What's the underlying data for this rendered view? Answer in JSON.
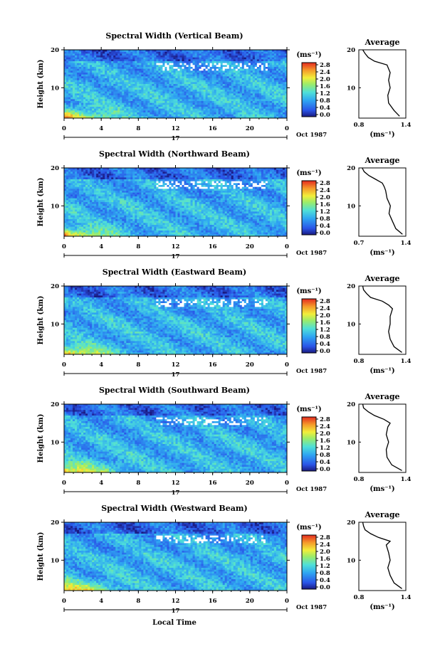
{
  "figure": {
    "xlabel": "Local Time"
  },
  "chart_data": [
    {
      "type": "heatmap",
      "title": "Spectral Width (Vertical Beam)",
      "ylabel": "Height (km)",
      "x_ticks": [
        "0",
        "4",
        "8",
        "12",
        "16",
        "20",
        "0"
      ],
      "y_ticks": [
        "20",
        "10"
      ],
      "date_label": "17",
      "month_label": "Oct 1987",
      "xlim": [
        0,
        24
      ],
      "ylim": [
        2,
        20
      ],
      "colorbar": {
        "unit": "(ms⁻¹)",
        "ticks": [
          "2.8",
          "2.4",
          "2.0",
          "1.6",
          "1.2",
          "0.8",
          "0.4",
          "0.0"
        ],
        "range": [
          0.0,
          3.0
        ]
      },
      "average": {
        "title": "Average",
        "x_ticks": [
          "0.8",
          "1.4"
        ],
        "y_ticks": [
          "20",
          "10"
        ],
        "xlabel": "(ms⁻¹)",
        "xlim": [
          0.8,
          1.4
        ],
        "heights": [
          2.5,
          4,
          6,
          8,
          10,
          12,
          14,
          15,
          16,
          17,
          18,
          19,
          20
        ],
        "values": [
          1.32,
          1.25,
          1.18,
          1.17,
          1.2,
          1.18,
          1.2,
          1.18,
          1.16,
          1.0,
          0.92,
          0.88,
          0.85
        ]
      }
    },
    {
      "type": "heatmap",
      "title": "Spectral Width (Northward Beam)",
      "ylabel": "Height (km)",
      "x_ticks": [
        "0",
        "4",
        "8",
        "12",
        "16",
        "20",
        "0"
      ],
      "y_ticks": [
        "20",
        "10"
      ],
      "date_label": "17",
      "month_label": "Oct 1987",
      "xlim": [
        0,
        24
      ],
      "ylim": [
        2,
        20
      ],
      "colorbar": {
        "unit": "(ms⁻¹)",
        "ticks": [
          "2.8",
          "2.4",
          "2.0",
          "1.6",
          "1.2",
          "0.8",
          "0.4",
          "0.0"
        ],
        "range": [
          0.0,
          3.0
        ]
      },
      "average": {
        "title": "Average",
        "x_ticks": [
          "0.7",
          "1.4"
        ],
        "y_ticks": [
          "20",
          "10"
        ],
        "xlabel": "(ms⁻¹)",
        "xlim": [
          0.7,
          1.4
        ],
        "heights": [
          2.5,
          4,
          6,
          8,
          10,
          12,
          14,
          15,
          16,
          17,
          18,
          19,
          20
        ],
        "values": [
          1.35,
          1.25,
          1.2,
          1.15,
          1.17,
          1.12,
          1.1,
          1.08,
          1.05,
          0.95,
          0.85,
          0.78,
          0.75
        ]
      }
    },
    {
      "type": "heatmap",
      "title": "Spectral Width (Eastward Beam)",
      "ylabel": "Height (km)",
      "x_ticks": [
        "0",
        "4",
        "8",
        "12",
        "16",
        "20",
        "0"
      ],
      "y_ticks": [
        "20",
        "10"
      ],
      "date_label": "17",
      "month_label": "Oct 1987",
      "xlim": [
        0,
        24
      ],
      "ylim": [
        2,
        20
      ],
      "colorbar": {
        "unit": "(ms⁻¹)",
        "ticks": [
          "2.8",
          "2.4",
          "2.0",
          "1.6",
          "1.2",
          "0.8",
          "0.4",
          "0.0"
        ],
        "range": [
          0.0,
          3.0
        ]
      },
      "average": {
        "title": "Average",
        "x_ticks": [
          "0.8",
          "1.4"
        ],
        "y_ticks": [
          "20",
          "10"
        ],
        "xlabel": "(ms⁻¹)",
        "xlim": [
          0.8,
          1.4
        ],
        "heights": [
          2.5,
          4,
          6,
          8,
          10,
          12,
          14,
          15,
          16,
          17,
          18,
          19,
          20
        ],
        "values": [
          1.35,
          1.25,
          1.2,
          1.18,
          1.2,
          1.2,
          1.23,
          1.18,
          1.1,
          0.95,
          0.9,
          0.86,
          0.85
        ]
      }
    },
    {
      "type": "heatmap",
      "title": "Spectral Width (Southward Beam)",
      "ylabel": "Height (km)",
      "x_ticks": [
        "0",
        "4",
        "8",
        "12",
        "16",
        "20",
        "0"
      ],
      "y_ticks": [
        "20",
        "10"
      ],
      "date_label": "17",
      "month_label": "Oct 1987",
      "xlim": [
        0,
        24
      ],
      "ylim": [
        2,
        20
      ],
      "colorbar": {
        "unit": "(ms⁻¹)",
        "ticks": [
          "2.8",
          "2.4",
          "2.0",
          "1.6",
          "1.2",
          "0.8",
          "0.4",
          "0.0"
        ],
        "range": [
          0.0,
          3.0
        ]
      },
      "average": {
        "title": "Average",
        "x_ticks": [
          "0.8",
          "1.4"
        ],
        "y_ticks": [
          "20",
          "10"
        ],
        "xlabel": "(ms⁻¹)",
        "xlim": [
          0.8,
          1.4
        ],
        "heights": [
          2.5,
          4,
          6,
          8,
          10,
          12,
          14,
          15,
          16,
          17,
          18,
          19,
          20
        ],
        "values": [
          1.35,
          1.22,
          1.16,
          1.15,
          1.18,
          1.15,
          1.17,
          1.2,
          1.12,
          1.0,
          0.92,
          0.86,
          0.85
        ]
      }
    },
    {
      "type": "heatmap",
      "title": "Spectral Width (Westward Beam)",
      "ylabel": "Height (km)",
      "x_ticks": [
        "0",
        "4",
        "8",
        "12",
        "16",
        "20",
        "0"
      ],
      "y_ticks": [
        "20",
        "10"
      ],
      "date_label": "17",
      "month_label": "Oct 1987",
      "xlim": [
        0,
        24
      ],
      "ylim": [
        2,
        20
      ],
      "colorbar": {
        "unit": "(ms⁻¹)",
        "ticks": [
          "2.8",
          "2.4",
          "2.0",
          "1.6",
          "1.2",
          "0.8",
          "0.4",
          "0.0"
        ],
        "range": [
          0.0,
          3.0
        ]
      },
      "average": {
        "title": "Average",
        "x_ticks": [
          "0.8",
          "1.4"
        ],
        "y_ticks": [
          "20",
          "10"
        ],
        "xlabel": "(ms⁻¹)",
        "xlim": [
          0.8,
          1.4
        ],
        "heights": [
          2.5,
          4,
          6,
          8,
          10,
          12,
          14,
          15,
          16,
          17,
          18,
          19,
          20
        ],
        "values": [
          1.35,
          1.25,
          1.2,
          1.17,
          1.2,
          1.18,
          1.15,
          1.2,
          1.05,
          0.95,
          0.88,
          0.86,
          0.85
        ]
      }
    }
  ]
}
